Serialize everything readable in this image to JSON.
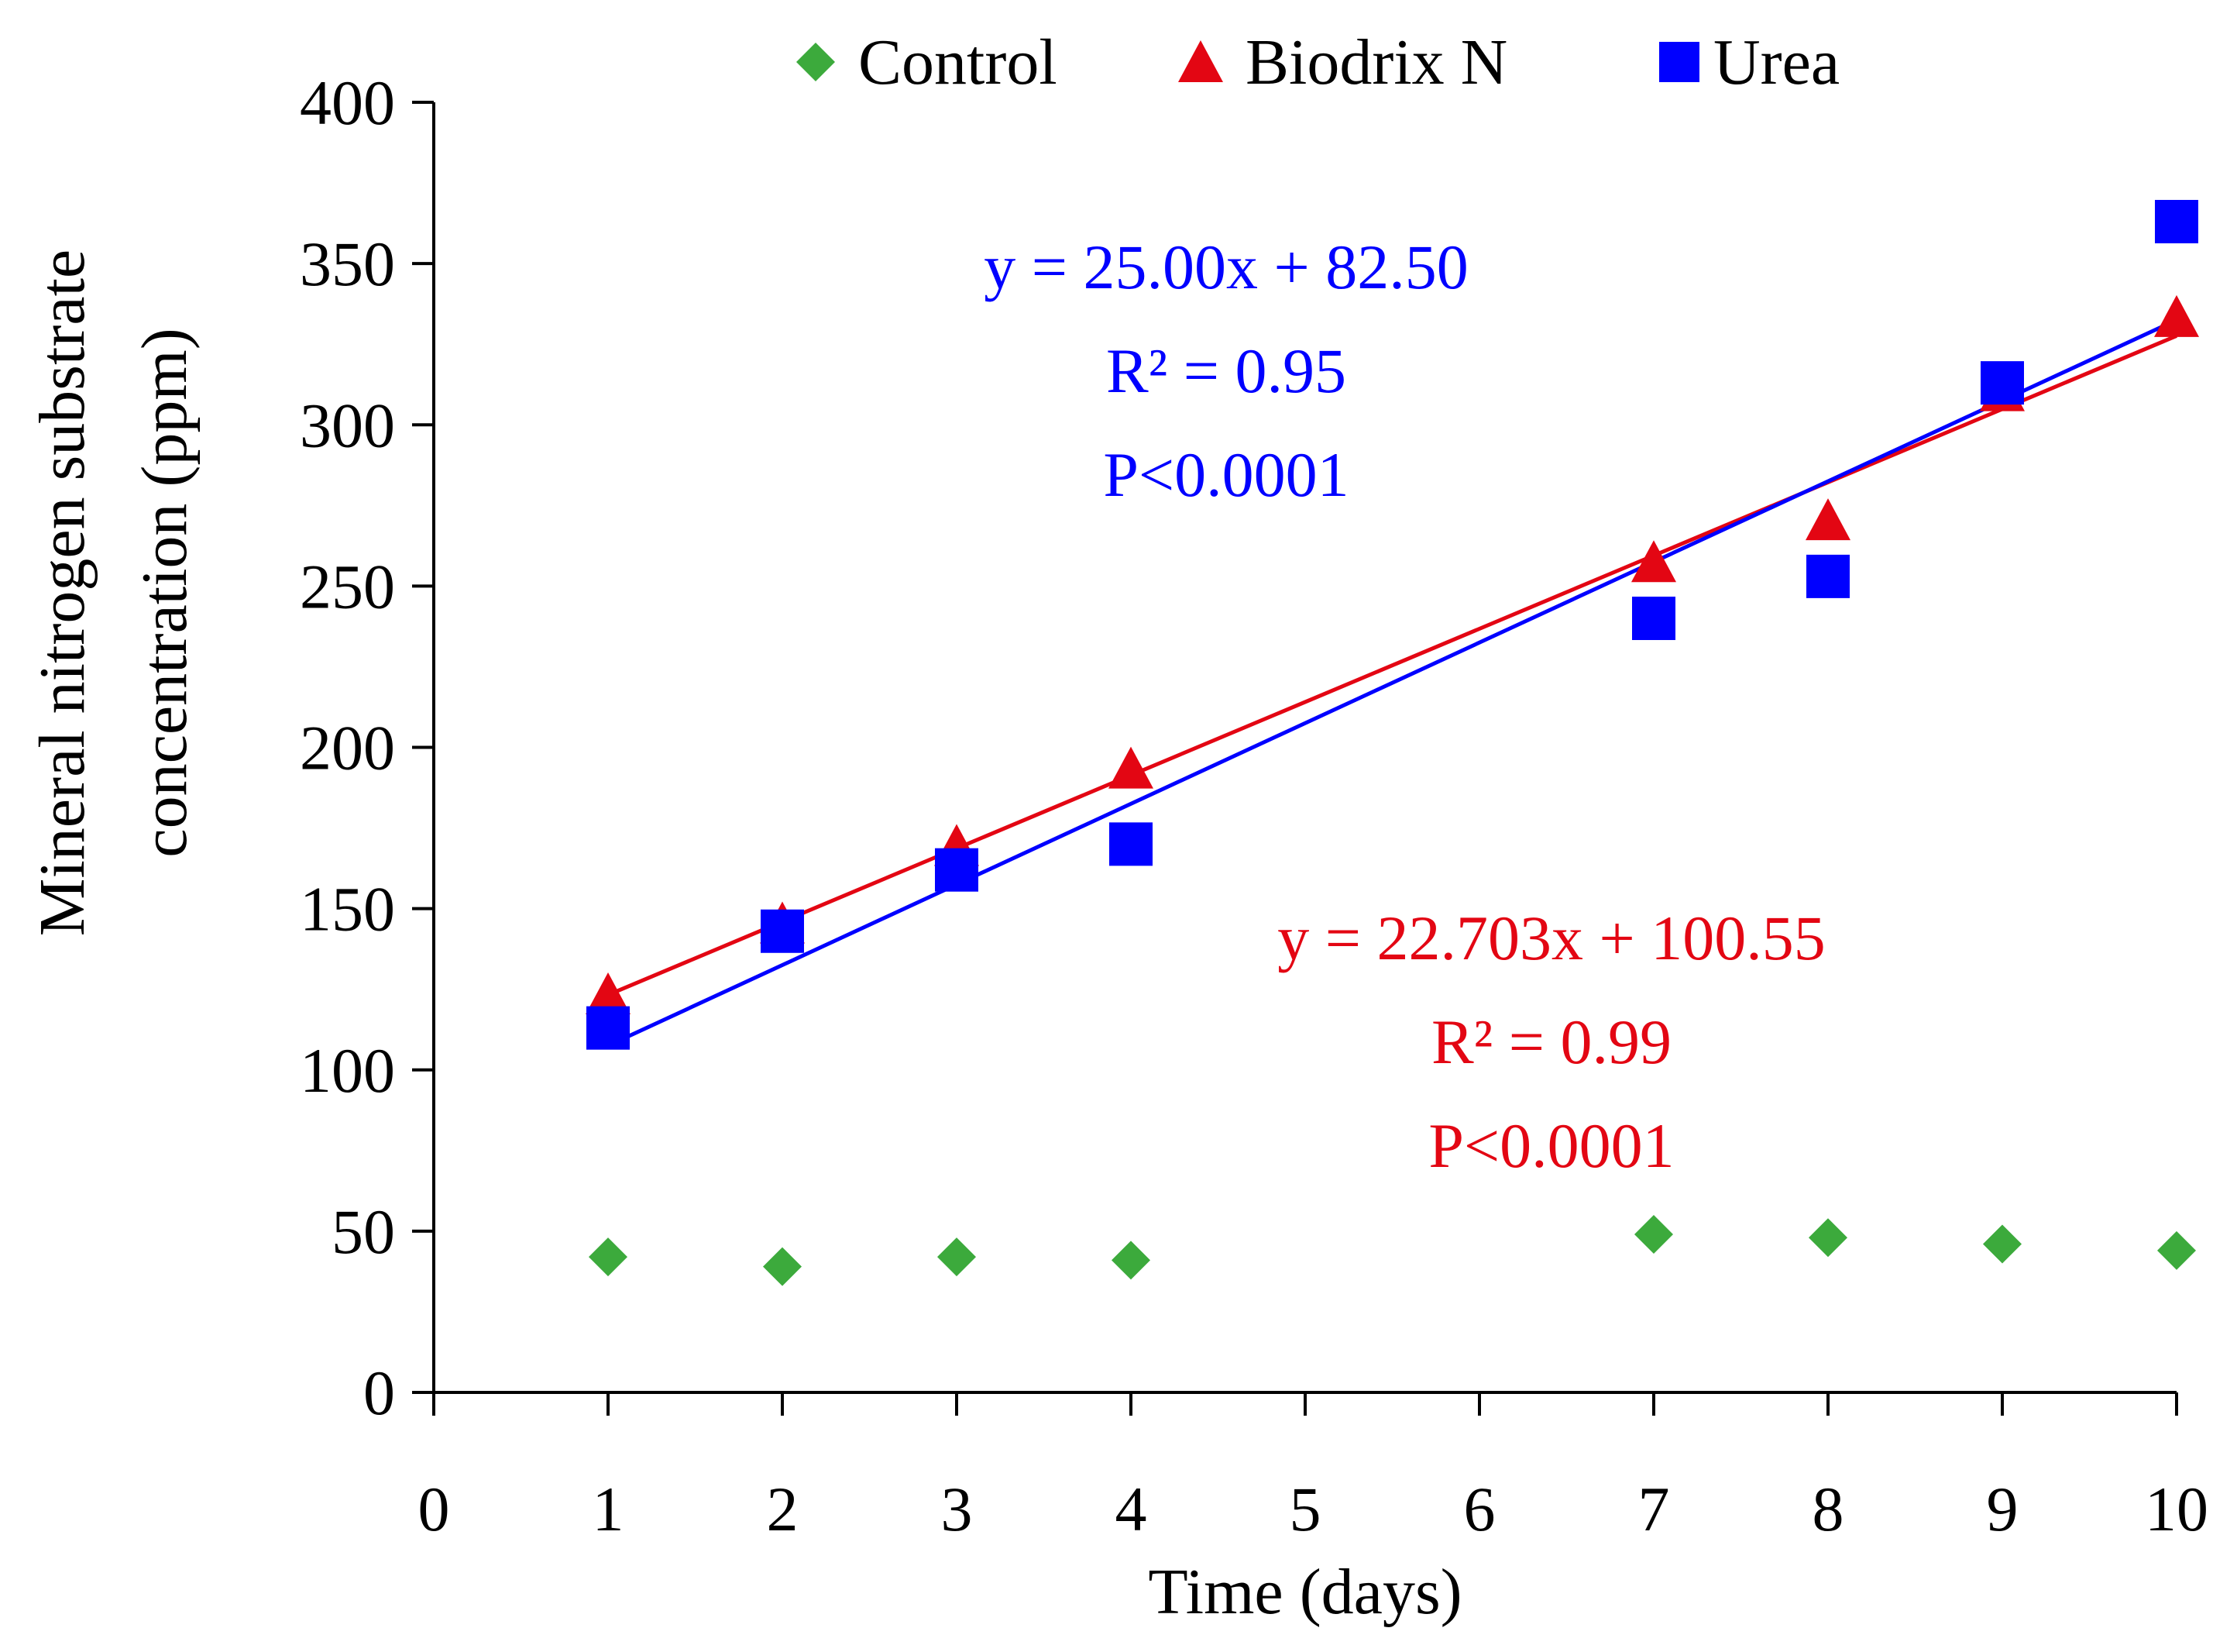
{
  "chart_data": {
    "type": "scatter",
    "xlabel": "Time (days)",
    "ylabel_lines": [
      "Mineral nitrogen substrate",
      "concentration (ppm)"
    ],
    "xlim": [
      0,
      10
    ],
    "ylim": [
      0,
      400
    ],
    "x_ticks": [
      0,
      1,
      2,
      3,
      4,
      5,
      6,
      7,
      8,
      9,
      10
    ],
    "y_ticks": [
      0,
      50,
      100,
      150,
      200,
      250,
      300,
      350,
      400
    ],
    "legend_position": "top",
    "series": [
      {
        "name": "Control",
        "marker": "diamond",
        "color": "#3CAA3C",
        "x": [
          1,
          2,
          3,
          4,
          7,
          8,
          9,
          10
        ],
        "y": [
          42,
          39,
          42,
          41,
          49,
          48,
          46,
          44
        ]
      },
      {
        "name": "Biodrix N",
        "marker": "triangle",
        "color": "#E30613",
        "x": [
          1,
          2,
          3,
          4,
          7,
          8,
          9,
          10
        ],
        "y": [
          123,
          145,
          169,
          193,
          257,
          270,
          310,
          333
        ],
        "trendline": {
          "slope": 22.703,
          "intercept": 100.55,
          "x_range": [
            1,
            10
          ],
          "lines": [
            "y = 22.703x + 100.55",
            "R² = 0.99",
            "P<0.0001"
          ]
        }
      },
      {
        "name": "Urea",
        "marker": "square",
        "color": "#0000FF",
        "x": [
          1,
          2,
          3,
          4,
          7,
          8,
          9,
          10
        ],
        "y": [
          113,
          143,
          162,
          170,
          240,
          253,
          313,
          363
        ],
        "trendline": {
          "slope": 25.0,
          "intercept": 82.5,
          "x_range": [
            1,
            10
          ],
          "lines": [
            "y = 25.00x + 82.50",
            "R² = 0.95",
            "P<0.0001"
          ]
        }
      }
    ]
  }
}
